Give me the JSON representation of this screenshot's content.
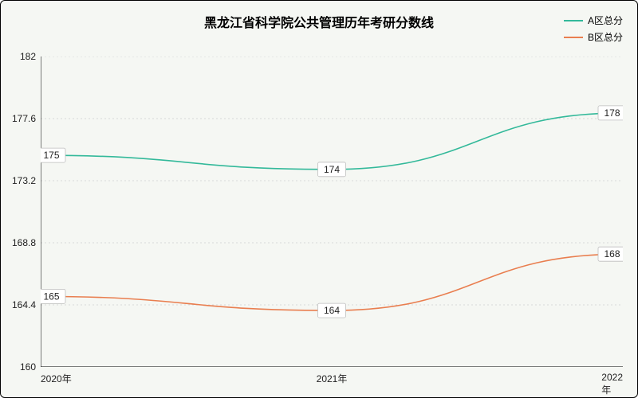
{
  "title": {
    "text": "黑龙江省科学院公共管理历年考研分数线",
    "fontsize": 16,
    "fontweight": "bold",
    "color": "#000"
  },
  "legend": {
    "position": "top-right",
    "items": [
      {
        "label": "A区总分",
        "color": "#33b99a"
      },
      {
        "label": "B区总分",
        "color": "#e97e4f"
      }
    ],
    "fontsize": 12
  },
  "chart": {
    "type": "line",
    "background_color": "#f5f7f3",
    "grid_color": "#d8d8d8",
    "axis_color": "#000",
    "x": {
      "categories": [
        "2020年",
        "2021年",
        "2022年"
      ],
      "label_fontsize": 12
    },
    "y": {
      "min": 160,
      "max": 182,
      "step": 4.4,
      "ticks": [
        160,
        164.4,
        168.8,
        173.2,
        177.6,
        182
      ],
      "label_fontsize": 12
    },
    "series": [
      {
        "name": "A区总分",
        "color": "#33b99a",
        "values": [
          175,
          174,
          178
        ],
        "line_width": 1.6,
        "smooth": true
      },
      {
        "name": "B区总分",
        "color": "#e97e4f",
        "values": [
          165,
          164,
          168
        ],
        "line_width": 1.6,
        "smooth": true
      }
    ],
    "point_labels": {
      "enabled": true,
      "box_fill": "#ffffff",
      "box_stroke": "#bdbdbd",
      "fontsize": 12
    }
  }
}
